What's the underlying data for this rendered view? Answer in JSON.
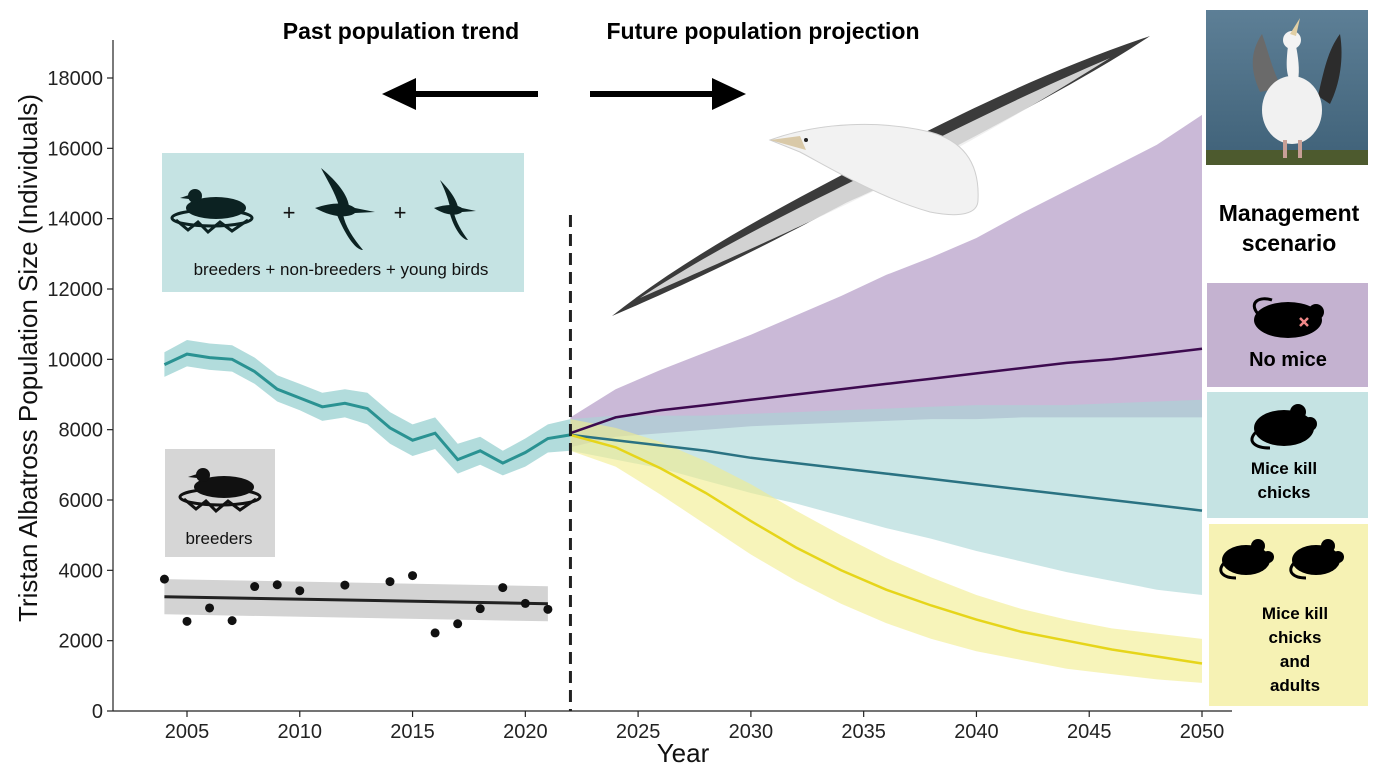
{
  "chart_data": {
    "type": "line",
    "xlabel": "Year",
    "ylabel": "Tristan Albatross Population Size (Individuals)",
    "xlim": [
      2002.5,
      2050.5
    ],
    "ylim": [
      0,
      19000
    ],
    "x_ticks": [
      2005,
      2010,
      2015,
      2020,
      2025,
      2030,
      2035,
      2040,
      2045,
      2050
    ],
    "y_ticks": [
      0,
      2000,
      4000,
      6000,
      8000,
      10000,
      12000,
      14000,
      16000,
      18000
    ],
    "divider_year": 2022,
    "headers": {
      "past": "Past population trend",
      "future": "Future population projection"
    },
    "boxes": {
      "total": "breeders + non-breeders + young birds",
      "breeders": "breeders",
      "plus": "+"
    },
    "legend": {
      "title_line1": "Management",
      "title_line2": "scenario",
      "entries": [
        {
          "lines": [
            "No mice"
          ],
          "color": "#c4b2d0",
          "line_color": "#3d0a4f"
        },
        {
          "lines": [
            "Mice kill",
            "chicks"
          ],
          "color": "#c5e3e3",
          "line_color": "#2a7282"
        },
        {
          "lines": [
            "Mice kill",
            "chicks",
            "and",
            "adults"
          ],
          "color": "#f6f2b4",
          "line_color": "#e6d51a"
        }
      ]
    },
    "total_population": {
      "color": "#2a9292",
      "band_color": "#b2dcdc",
      "x": [
        2004,
        2005,
        2006,
        2007,
        2008,
        2009,
        2010,
        2011,
        2012,
        2013,
        2014,
        2015,
        2016,
        2017,
        2018,
        2019,
        2020,
        2021,
        2022
      ],
      "y": [
        9850,
        10150,
        10050,
        10000,
        9650,
        9150,
        8900,
        8650,
        8750,
        8600,
        8050,
        7700,
        7900,
        7150,
        7400,
        7050,
        7350,
        7750,
        7850
      ],
      "lower": [
        9500,
        9800,
        9700,
        9650,
        9300,
        8800,
        8550,
        8250,
        8350,
        8150,
        7600,
        7250,
        7450,
        6750,
        7000,
        6700,
        6950,
        7350,
        7400
      ],
      "upper": [
        10200,
        10550,
        10450,
        10400,
        10050,
        9550,
        9300,
        9050,
        9150,
        9050,
        8500,
        8150,
        8350,
        7600,
        7800,
        7400,
        7750,
        8150,
        8300
      ]
    },
    "breeders": {
      "points_x": [
        2004,
        2005,
        2006,
        2007,
        2008,
        2009,
        2010,
        2012,
        2014,
        2015,
        2016,
        2017,
        2018,
        2019,
        2020,
        2021
      ],
      "points_y": [
        3750,
        2550,
        2930,
        2570,
        3540,
        3590,
        3420,
        3580,
        3680,
        3850,
        2220,
        2480,
        2910,
        3510,
        3060,
        2890
      ],
      "trend_x": [
        2004,
        2021
      ],
      "trend_y": [
        3250,
        3050
      ],
      "trend_lower": [
        2750,
        2550
      ],
      "trend_upper": [
        3750,
        3550
      ],
      "line_color": "#222222",
      "band_color": "#d3d3d3",
      "point_color": "#111111"
    },
    "projections": [
      {
        "name": "No mice",
        "line_color": "#3d0a4f",
        "band_color": "#a78bbd",
        "x": [
          2022,
          2024,
          2026,
          2028,
          2030,
          2032,
          2034,
          2036,
          2038,
          2040,
          2042,
          2044,
          2046,
          2048,
          2050
        ],
        "y": [
          7900,
          8350,
          8550,
          8700,
          8850,
          9000,
          9150,
          9300,
          9450,
          9600,
          9750,
          9900,
          10000,
          10150,
          10300
        ],
        "lower": [
          7500,
          7800,
          7900,
          8000,
          8100,
          8150,
          8200,
          8250,
          8300,
          8300,
          8350,
          8350,
          8350,
          8350,
          8350
        ],
        "upper": [
          8350,
          9150,
          9700,
          10200,
          10700,
          11250,
          11800,
          12400,
          12900,
          13450,
          14150,
          14800,
          15450,
          16100,
          16950
        ]
      },
      {
        "name": "Mice kill chicks",
        "line_color": "#2a7282",
        "band_color": "#a7d5d5",
        "x": [
          2022,
          2024,
          2026,
          2028,
          2030,
          2032,
          2034,
          2036,
          2038,
          2040,
          2042,
          2044,
          2046,
          2048,
          2050
        ],
        "y": [
          7850,
          7700,
          7550,
          7400,
          7200,
          7050,
          6900,
          6750,
          6600,
          6450,
          6300,
          6150,
          6000,
          5850,
          5700
        ],
        "lower": [
          7400,
          7150,
          6900,
          6550,
          6200,
          5900,
          5550,
          5200,
          4900,
          4550,
          4250,
          3950,
          3700,
          3450,
          3300
        ],
        "upper": [
          8300,
          8400,
          8400,
          8400,
          8450,
          8500,
          8550,
          8600,
          8650,
          8700,
          8700,
          8700,
          8750,
          8800,
          8850
        ]
      },
      {
        "name": "Mice kill chicks and adults",
        "line_color": "#e6d51a",
        "band_color": "#f2ec8c",
        "x": [
          2022,
          2024,
          2026,
          2028,
          2030,
          2032,
          2034,
          2036,
          2038,
          2040,
          2042,
          2044,
          2046,
          2048,
          2050
        ],
        "y": [
          7850,
          7500,
          6900,
          6200,
          5400,
          4650,
          4000,
          3450,
          3000,
          2600,
          2250,
          2000,
          1750,
          1550,
          1350
        ],
        "lower": [
          7400,
          6950,
          6150,
          5300,
          4450,
          3700,
          3050,
          2500,
          2050,
          1700,
          1450,
          1200,
          1050,
          900,
          800
        ],
        "upper": [
          8300,
          8050,
          7650,
          7100,
          6450,
          5700,
          5000,
          4350,
          3800,
          3300,
          2900,
          2600,
          2350,
          2200,
          2050
        ]
      }
    ]
  }
}
